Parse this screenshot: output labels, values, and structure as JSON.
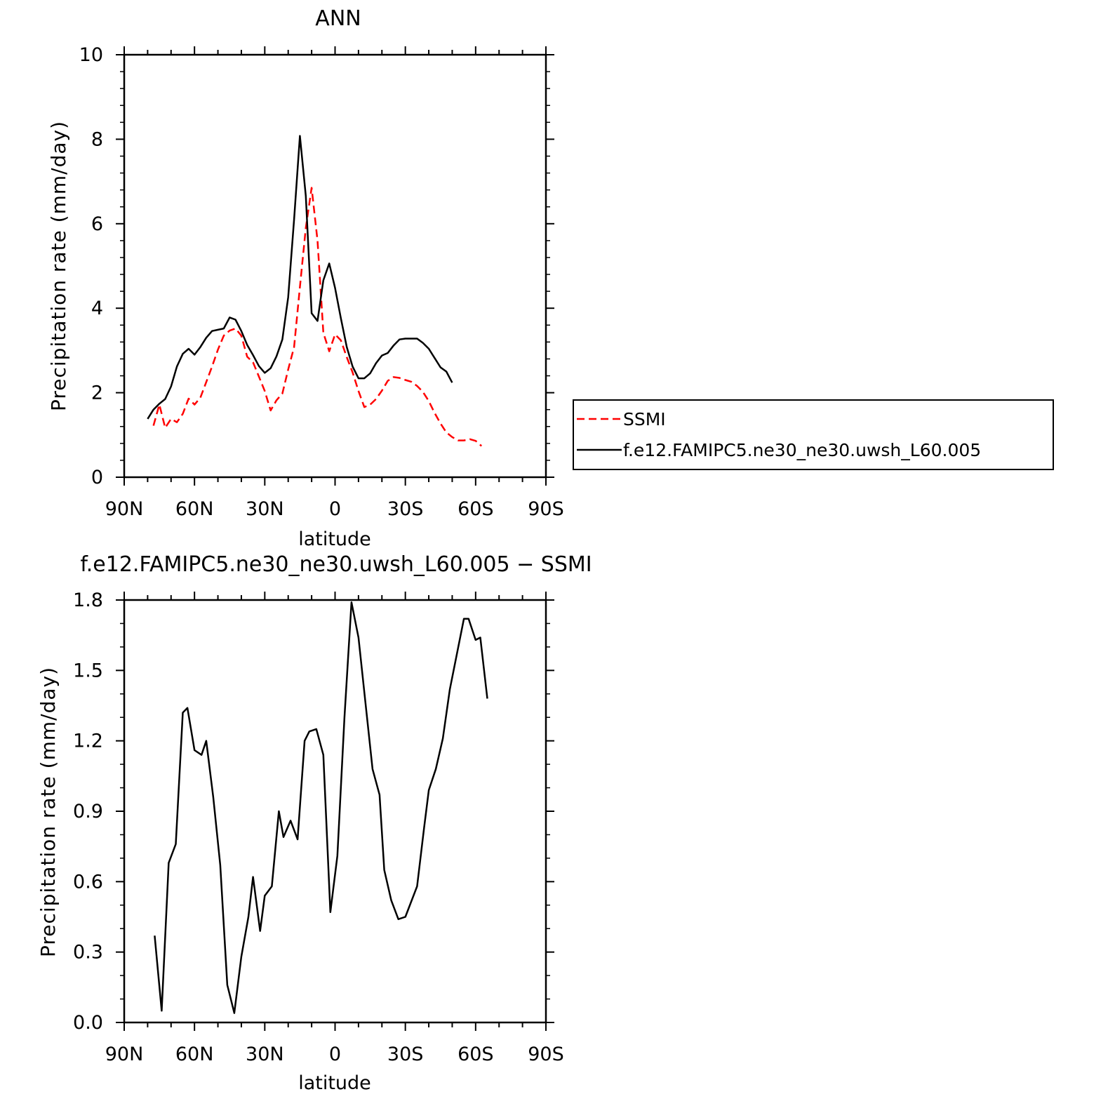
{
  "chart_data": [
    {
      "type": "line",
      "title": "ANN",
      "xlabel": "latitude",
      "ylabel": "Precipitation rate (mm/day)",
      "x_direction": "north-to-south",
      "xlim": [
        90,
        -90
      ],
      "ylim": [
        0,
        10
      ],
      "x_ticks": [
        {
          "value": 90,
          "label": "90N"
        },
        {
          "value": 60,
          "label": "60N"
        },
        {
          "value": 30,
          "label": "30N"
        },
        {
          "value": 0,
          "label": "0"
        },
        {
          "value": -30,
          "label": "30S"
        },
        {
          "value": -60,
          "label": "60S"
        },
        {
          "value": -90,
          "label": "90S"
        }
      ],
      "y_ticks": [
        {
          "value": 0,
          "label": "0"
        },
        {
          "value": 2,
          "label": "2"
        },
        {
          "value": 4,
          "label": "4"
        },
        {
          "value": 6,
          "label": "6"
        },
        {
          "value": 8,
          "label": "8"
        },
        {
          "value": 10,
          "label": "10"
        }
      ],
      "grid": false,
      "legend": {
        "placement": "right"
      },
      "series": [
        {
          "name": "SSMI",
          "color": "#ff0000",
          "dash": "dashed",
          "points": [
            [
              77.5,
              1.22
            ],
            [
              75,
              1.72
            ],
            [
              72.5,
              1.17
            ],
            [
              70,
              1.38
            ],
            [
              67.5,
              1.3
            ],
            [
              65,
              1.5
            ],
            [
              62.5,
              1.86
            ],
            [
              60,
              1.72
            ],
            [
              57.5,
              1.88
            ],
            [
              55,
              2.25
            ],
            [
              52.5,
              2.62
            ],
            [
              50,
              3.02
            ],
            [
              47.5,
              3.35
            ],
            [
              45,
              3.47
            ],
            [
              42.5,
              3.52
            ],
            [
              40,
              3.35
            ],
            [
              37.5,
              2.85
            ],
            [
              35,
              2.72
            ],
            [
              32.5,
              2.38
            ],
            [
              30,
              2.04
            ],
            [
              27.5,
              1.58
            ],
            [
              25,
              1.82
            ],
            [
              22.5,
              1.98
            ],
            [
              20,
              2.55
            ],
            [
              17.5,
              3.08
            ],
            [
              15,
              4.5
            ],
            [
              12.5,
              5.9
            ],
            [
              10,
              6.85
            ],
            [
              7.5,
              5.6
            ],
            [
              5,
              3.42
            ],
            [
              2.5,
              2.98
            ],
            [
              0,
              3.38
            ],
            [
              -2.5,
              3.24
            ],
            [
              -5,
              2.84
            ],
            [
              -7.5,
              2.48
            ],
            [
              -10,
              2.04
            ],
            [
              -12.5,
              1.66
            ],
            [
              -15,
              1.72
            ],
            [
              -17.5,
              1.85
            ],
            [
              -20,
              2.05
            ],
            [
              -22.5,
              2.28
            ],
            [
              -25,
              2.37
            ],
            [
              -27.5,
              2.35
            ],
            [
              -30,
              2.3
            ],
            [
              -32.5,
              2.26
            ],
            [
              -35,
              2.16
            ],
            [
              -37.5,
              2.02
            ],
            [
              -40,
              1.8
            ],
            [
              -42.5,
              1.52
            ],
            [
              -45,
              1.27
            ],
            [
              -47.5,
              1.06
            ],
            [
              -50,
              0.95
            ],
            [
              -52.5,
              0.87
            ],
            [
              -55,
              0.87
            ],
            [
              -57.5,
              0.9
            ],
            [
              -60,
              0.86
            ],
            [
              -62.5,
              0.74
            ]
          ]
        },
        {
          "name": "f.e12.FAMIPC5.ne30_ne30.uwsh_L60.005",
          "color": "#000000",
          "dash": "solid",
          "points": [
            [
              80,
              1.38
            ],
            [
              77.5,
              1.6
            ],
            [
              75,
              1.74
            ],
            [
              72.5,
              1.85
            ],
            [
              70,
              2.15
            ],
            [
              67.5,
              2.62
            ],
            [
              65,
              2.92
            ],
            [
              62.5,
              3.04
            ],
            [
              60,
              2.9
            ],
            [
              57.5,
              3.08
            ],
            [
              55,
              3.3
            ],
            [
              52.5,
              3.46
            ],
            [
              50,
              3.49
            ],
            [
              47.5,
              3.52
            ],
            [
              45,
              3.78
            ],
            [
              42.5,
              3.73
            ],
            [
              40,
              3.46
            ],
            [
              37.5,
              3.13
            ],
            [
              35,
              2.89
            ],
            [
              32.5,
              2.63
            ],
            [
              30,
              2.47
            ],
            [
              27.5,
              2.58
            ],
            [
              25,
              2.86
            ],
            [
              22.5,
              3.26
            ],
            [
              20,
              4.26
            ],
            [
              17.5,
              6.1
            ],
            [
              15,
              8.08
            ],
            [
              12.5,
              6.66
            ],
            [
              10,
              3.88
            ],
            [
              7.5,
              3.7
            ],
            [
              5,
              4.66
            ],
            [
              2.5,
              5.06
            ],
            [
              0,
              4.48
            ],
            [
              -2.5,
              3.76
            ],
            [
              -5,
              3.08
            ],
            [
              -7.5,
              2.62
            ],
            [
              -10,
              2.34
            ],
            [
              -12.5,
              2.34
            ],
            [
              -15,
              2.46
            ],
            [
              -17.5,
              2.7
            ],
            [
              -20,
              2.88
            ],
            [
              -22.5,
              2.94
            ],
            [
              -25,
              3.12
            ],
            [
              -27.5,
              3.26
            ],
            [
              -30,
              3.28
            ],
            [
              -32.5,
              3.28
            ],
            [
              -35,
              3.28
            ],
            [
              -37.5,
              3.18
            ],
            [
              -40,
              3.04
            ],
            [
              -42.5,
              2.82
            ],
            [
              -45,
              2.6
            ],
            [
              -47.5,
              2.5
            ],
            [
              -50,
              2.24
            ]
          ]
        }
      ]
    },
    {
      "type": "line",
      "title": "f.e12.FAMIPC5.ne30_ne30.uwsh_L60.005 − SSMI",
      "xlabel": "latitude",
      "ylabel": "Precipitation rate (mm/day)",
      "x_direction": "north-to-south",
      "xlim": [
        90,
        -90
      ],
      "ylim": [
        0,
        1.8
      ],
      "x_ticks": [
        {
          "value": 90,
          "label": "90N"
        },
        {
          "value": 60,
          "label": "60N"
        },
        {
          "value": 30,
          "label": "30N"
        },
        {
          "value": 0,
          "label": "0"
        },
        {
          "value": -30,
          "label": "30S"
        },
        {
          "value": -60,
          "label": "60S"
        },
        {
          "value": -90,
          "label": "90S"
        }
      ],
      "y_ticks": [
        {
          "value": 0,
          "label": "0.0"
        },
        {
          "value": 0.3,
          "label": "0.3"
        },
        {
          "value": 0.6,
          "label": "0.6"
        },
        {
          "value": 0.9,
          "label": "0.9"
        },
        {
          "value": 1.2,
          "label": "1.2"
        },
        {
          "value": 1.5,
          "label": "1.5"
        },
        {
          "value": 1.8,
          "label": "1.8"
        }
      ],
      "grid": false,
      "series": [
        {
          "color": "#000000",
          "dash": "solid",
          "points": [
            [
              77,
              0.37
            ],
            [
              74,
              0.05
            ],
            [
              71,
              0.68
            ],
            [
              68,
              0.76
            ],
            [
              65,
              1.32
            ],
            [
              63,
              1.34
            ],
            [
              60,
              1.16
            ],
            [
              57,
              1.14
            ],
            [
              55,
              1.2
            ],
            [
              52,
              0.96
            ],
            [
              49,
              0.67
            ],
            [
              46,
              0.16
            ],
            [
              43,
              0.04
            ],
            [
              40,
              0.28
            ],
            [
              37,
              0.45
            ],
            [
              35,
              0.62
            ],
            [
              32,
              0.39
            ],
            [
              30,
              0.54
            ],
            [
              27,
              0.58
            ],
            [
              24,
              0.9
            ],
            [
              22,
              0.79
            ],
            [
              19,
              0.86
            ],
            [
              16,
              0.78
            ],
            [
              13,
              1.2
            ],
            [
              11,
              1.24
            ],
            [
              8,
              1.25
            ],
            [
              5,
              1.14
            ],
            [
              2,
              0.47
            ],
            [
              -1,
              0.71
            ],
            [
              -4,
              1.3
            ],
            [
              -7,
              1.79
            ],
            [
              -10,
              1.64
            ],
            [
              -13,
              1.36
            ],
            [
              -16,
              1.08
            ],
            [
              -19,
              0.97
            ],
            [
              -21,
              0.65
            ],
            [
              -24,
              0.52
            ],
            [
              -27,
              0.44
            ],
            [
              -30,
              0.45
            ],
            [
              -35,
              0.58
            ],
            [
              -38,
              0.83
            ],
            [
              -40,
              0.99
            ],
            [
              -43,
              1.08
            ],
            [
              -46,
              1.21
            ],
            [
              -49,
              1.42
            ],
            [
              -55,
              1.72
            ],
            [
              -57,
              1.72
            ],
            [
              -60,
              1.63
            ],
            [
              -62,
              1.64
            ],
            [
              -65,
              1.38
            ]
          ]
        }
      ]
    }
  ]
}
